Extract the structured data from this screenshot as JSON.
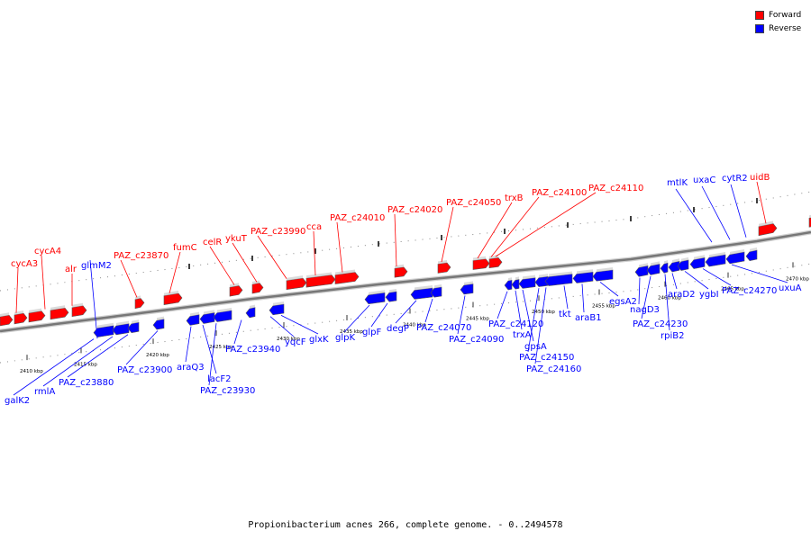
{
  "legend": [
    {
      "label": "Forward",
      "color": "#ff0000"
    },
    {
      "label": "Reverse",
      "color": "#0000ff"
    }
  ],
  "caption": "Propionibacterium acnes 266, complete genome. - 0..2494578",
  "colors": {
    "forward": "#ff0000",
    "reverse": "#0000ff",
    "backbone": "#777777"
  },
  "scale_ticks": [
    "2410 kbp",
    "2415 kbp",
    "2420 kbp",
    "2425 kbp",
    "2430 kbp",
    "2435 kbp",
    "2440 kbp",
    "2445 kbp",
    "2450 kbp",
    "2455 kbp",
    "2460 kbp",
    "2465 kbp",
    "2470 kbp"
  ],
  "forward_labels": [
    "cycA3",
    "cycA4",
    "alr",
    "PAZ_c23870",
    "fumC",
    "celR",
    "ykuT",
    "PAZ_c23990",
    "cca",
    "PAZ_c24010",
    "PAZ_c24020",
    "PAZ_c24050",
    "trxB",
    "PAZ_c24100",
    "PAZ_c24110",
    "uidB"
  ],
  "reverse_labels": [
    "glmM2",
    "galK2",
    "rmlA",
    "PAZ_c23880",
    "PAZ_c23900",
    "araQ3",
    "lacF2",
    "PAZ_c23930",
    "PAZ_c23940",
    "yqcF",
    "glxK",
    "glpK",
    "glpF",
    "degP",
    "PAZ_c24070",
    "PAZ_c24090",
    "PAZ_c24120",
    "trxA",
    "gpsA",
    "PAZ_c24150",
    "PAZ_c24160",
    "tkt",
    "araB1",
    "egsA2",
    "nagD3",
    "PAZ_c24230",
    "rpiB2",
    "araD2",
    "ygbI",
    "PAZ_c24270",
    "uxuA",
    "mtlK",
    "uxaC",
    "cytR2"
  ]
}
